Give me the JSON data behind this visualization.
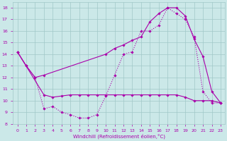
{
  "xlabel": "Windchill (Refroidissement éolien,°C)",
  "background_color": "#cbe8e8",
  "grid_color": "#a0c8c8",
  "line_color": "#aa00aa",
  "xlim": [
    -0.5,
    23.5
  ],
  "ylim": [
    8,
    18.5
  ],
  "xticks": [
    0,
    1,
    2,
    3,
    4,
    5,
    6,
    7,
    8,
    9,
    10,
    11,
    12,
    13,
    14,
    15,
    16,
    17,
    18,
    19,
    20,
    21,
    22,
    23
  ],
  "yticks": [
    8,
    9,
    10,
    11,
    12,
    13,
    14,
    15,
    16,
    17,
    18
  ],
  "line1_x": [
    0,
    1,
    2,
    3,
    10,
    11,
    12,
    13,
    14,
    15,
    16,
    17,
    18,
    19,
    20,
    21,
    22,
    23
  ],
  "line1_y": [
    14.2,
    13.0,
    12.0,
    12.2,
    14.0,
    14.5,
    14.8,
    15.2,
    15.5,
    16.8,
    17.5,
    18.0,
    18.0,
    17.3,
    15.3,
    13.8,
    10.8,
    9.8
  ],
  "line2_x": [
    0,
    1,
    2,
    3,
    4,
    5,
    6,
    7,
    8,
    9,
    10,
    11,
    12,
    13,
    14,
    15,
    16,
    17,
    18,
    19,
    20,
    21,
    22,
    23
  ],
  "line2_y": [
    14.2,
    13.0,
    12.0,
    9.3,
    9.5,
    9.0,
    8.8,
    8.5,
    8.5,
    8.8,
    10.4,
    12.2,
    14.0,
    14.2,
    16.0,
    16.0,
    16.5,
    18.0,
    17.5,
    17.0,
    15.5,
    10.8,
    9.8,
    9.8
  ],
  "line3_x": [
    0,
    3,
    4,
    5,
    6,
    7,
    8,
    9,
    10,
    11,
    12,
    13,
    14,
    15,
    16,
    17,
    18,
    19,
    20,
    21,
    22,
    23
  ],
  "line3_y": [
    14.2,
    10.5,
    10.3,
    10.4,
    10.5,
    10.5,
    10.5,
    10.5,
    10.5,
    10.5,
    10.5,
    10.5,
    10.5,
    10.5,
    10.5,
    10.5,
    10.5,
    10.3,
    10.0,
    10.0,
    10.0,
    9.8
  ],
  "line1_style": "-",
  "line2_style": ":",
  "line3_style": "-"
}
